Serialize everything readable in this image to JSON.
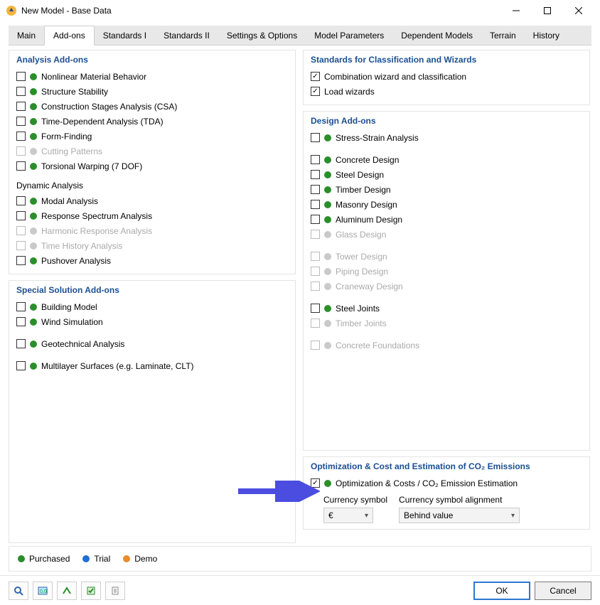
{
  "window": {
    "title": "New Model - Base Data"
  },
  "colors": {
    "purchased": "#2a8f2a",
    "trial": "#1f6fd4",
    "demo": "#e98a2b",
    "disabled": "#c9c9c9",
    "heading": "#1b4f91",
    "arrow": "#4a4de0"
  },
  "tabs": [
    {
      "label": "Main"
    },
    {
      "label": "Add-ons",
      "active": true
    },
    {
      "label": "Standards I"
    },
    {
      "label": "Standards II"
    },
    {
      "label": "Settings & Options"
    },
    {
      "label": "Model Parameters"
    },
    {
      "label": "Dependent Models"
    },
    {
      "label": "Terrain"
    },
    {
      "label": "History"
    }
  ],
  "left": {
    "analysis": {
      "title": "Analysis Add-ons",
      "items": [
        {
          "label": "Nonlinear Material Behavior",
          "status": "purchased"
        },
        {
          "label": "Structure Stability",
          "status": "purchased"
        },
        {
          "label": "Construction Stages Analysis (CSA)",
          "status": "purchased"
        },
        {
          "label": "Time-Dependent Analysis (TDA)",
          "status": "purchased"
        },
        {
          "label": "Form-Finding",
          "status": "purchased"
        },
        {
          "label": "Cutting Patterns",
          "status": "disabled"
        },
        {
          "label": "Torsional Warping (7 DOF)",
          "status": "purchased"
        }
      ],
      "dyn_title": "Dynamic Analysis",
      "dyn_items": [
        {
          "label": "Modal Analysis",
          "status": "purchased"
        },
        {
          "label": "Response Spectrum Analysis",
          "status": "purchased"
        },
        {
          "label": "Harmonic Response Analysis",
          "status": "disabled"
        },
        {
          "label": "Time History Analysis",
          "status": "disabled"
        },
        {
          "label": "Pushover Analysis",
          "status": "purchased"
        }
      ]
    },
    "special": {
      "title": "Special Solution Add-ons",
      "items": [
        {
          "label": "Building Model",
          "status": "purchased"
        },
        {
          "label": "Wind Simulation",
          "status": "purchased"
        }
      ],
      "items2": [
        {
          "label": "Geotechnical Analysis",
          "status": "purchased"
        }
      ],
      "items3": [
        {
          "label": "Multilayer Surfaces (e.g. Laminate, CLT)",
          "status": "purchased"
        }
      ]
    }
  },
  "right": {
    "standards": {
      "title": "Standards for Classification and Wizards",
      "items": [
        {
          "label": "Combination wizard and classification",
          "checked": true
        },
        {
          "label": "Load wizards",
          "checked": true
        }
      ]
    },
    "design": {
      "title": "Design Add-ons",
      "group1": [
        {
          "label": "Stress-Strain Analysis",
          "status": "purchased"
        }
      ],
      "group2": [
        {
          "label": "Concrete Design",
          "status": "purchased"
        },
        {
          "label": "Steel Design",
          "status": "purchased"
        },
        {
          "label": "Timber Design",
          "status": "purchased"
        },
        {
          "label": "Masonry Design",
          "status": "purchased"
        },
        {
          "label": "Aluminum Design",
          "status": "purchased"
        },
        {
          "label": "Glass Design",
          "status": "disabled"
        }
      ],
      "group3": [
        {
          "label": "Tower Design",
          "status": "disabled"
        },
        {
          "label": "Piping Design",
          "status": "disabled"
        },
        {
          "label": "Craneway Design",
          "status": "disabled"
        }
      ],
      "group4": [
        {
          "label": "Steel Joints",
          "status": "purchased"
        },
        {
          "label": "Timber Joints",
          "status": "disabled"
        }
      ],
      "group5": [
        {
          "label": "Concrete Foundations",
          "status": "disabled"
        }
      ]
    },
    "opt": {
      "title": "Optimization & Cost and Estimation of CO₂ Emissions",
      "item": {
        "label": "Optimization & Costs / CO₂ Emission Estimation",
        "status": "purchased",
        "checked": true
      },
      "currency_label": "Currency symbol",
      "currency_value": "€",
      "align_label": "Currency symbol alignment",
      "align_value": "Behind value"
    }
  },
  "legend": {
    "purchased": "Purchased",
    "trial": "Trial",
    "demo": "Demo"
  },
  "footer": {
    "ok": "OK",
    "cancel": "Cancel"
  }
}
